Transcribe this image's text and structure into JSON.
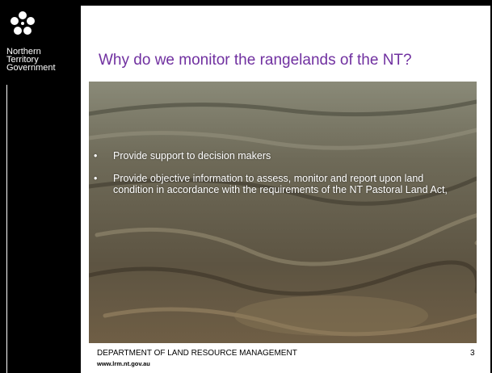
{
  "header": {
    "logo_text": [
      "Northern",
      "Territory",
      "Government"
    ]
  },
  "title": "Why do we monitor the rangelands of the NT?",
  "bullets": [
    "Provide support to decision makers",
    "Provide objective information to assess, monitor and report upon land condition in accordance with the requirements of the NT Pastoral Land Act,"
  ],
  "footer": {
    "department": "DEPARTMENT OF LAND RESOURCE MANAGEMENT",
    "url": "www.lrm.nt.gov.au",
    "page_number": "3"
  }
}
